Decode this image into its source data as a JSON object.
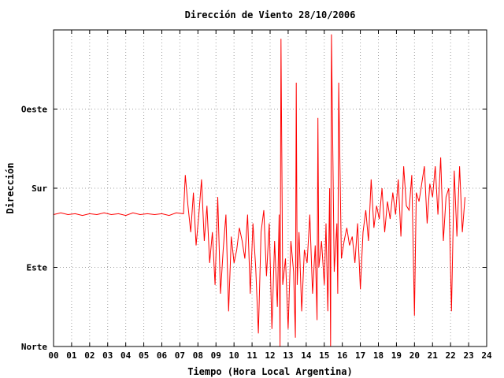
{
  "chart_data": {
    "type": "line",
    "title": "Dirección de Viento 28/10/2006",
    "xlabel": "Tiempo (Hora Local Argentina)",
    "ylabel": "Dirección",
    "xlim": [
      0,
      24
    ],
    "ylim": [
      0,
      360
    ],
    "x_ticks": [
      {
        "value": 0,
        "label": "00"
      },
      {
        "value": 1,
        "label": "01"
      },
      {
        "value": 2,
        "label": "02"
      },
      {
        "value": 3,
        "label": "03"
      },
      {
        "value": 4,
        "label": "04"
      },
      {
        "value": 5,
        "label": "05"
      },
      {
        "value": 6,
        "label": "06"
      },
      {
        "value": 7,
        "label": "07"
      },
      {
        "value": 8,
        "label": "08"
      },
      {
        "value": 9,
        "label": "09"
      },
      {
        "value": 10,
        "label": "10"
      },
      {
        "value": 11,
        "label": "11"
      },
      {
        "value": 12,
        "label": "12"
      },
      {
        "value": 13,
        "label": "13"
      },
      {
        "value": 14,
        "label": "14"
      },
      {
        "value": 15,
        "label": "15"
      },
      {
        "value": 16,
        "label": "16"
      },
      {
        "value": 17,
        "label": "17"
      },
      {
        "value": 18,
        "label": "18"
      },
      {
        "value": 19,
        "label": "19"
      },
      {
        "value": 20,
        "label": "20"
      },
      {
        "value": 21,
        "label": "21"
      },
      {
        "value": 22,
        "label": "22"
      },
      {
        "value": 23,
        "label": "23"
      },
      {
        "value": 24,
        "label": "24"
      }
    ],
    "y_ticks": [
      {
        "value": 0,
        "label": "Norte"
      },
      {
        "value": 90,
        "label": "Este"
      },
      {
        "value": 180,
        "label": "Sur"
      },
      {
        "value": 270,
        "label": "Oeste"
      }
    ],
    "grid": true,
    "series": [
      {
        "color": "#ff0000",
        "x": [
          0.0,
          0.4,
          0.8,
          1.2,
          1.6,
          2.0,
          2.4,
          2.8,
          3.2,
          3.6,
          4.0,
          4.4,
          4.8,
          5.2,
          5.6,
          6.0,
          6.4,
          6.8,
          7.2,
          7.3,
          7.45,
          7.6,
          7.75,
          7.9,
          8.05,
          8.2,
          8.35,
          8.5,
          8.65,
          8.8,
          8.95,
          9.1,
          9.25,
          9.4,
          9.55,
          9.7,
          9.85,
          10.0,
          10.15,
          10.3,
          10.45,
          10.6,
          10.75,
          10.9,
          11.05,
          11.2,
          11.35,
          11.5,
          11.65,
          11.8,
          11.95,
          12.1,
          12.25,
          12.4,
          12.5,
          12.55,
          12.6,
          12.7,
          12.85,
          13.0,
          13.15,
          13.3,
          13.4,
          13.45,
          13.5,
          13.6,
          13.75,
          13.9,
          14.05,
          14.2,
          14.35,
          14.5,
          14.6,
          14.65,
          14.7,
          14.85,
          15.0,
          15.1,
          15.2,
          15.3,
          15.35,
          15.4,
          15.55,
          15.7,
          15.75,
          15.8,
          15.95,
          16.1,
          16.25,
          16.4,
          16.55,
          16.7,
          16.85,
          17.0,
          17.15,
          17.3,
          17.45,
          17.6,
          17.75,
          17.9,
          18.05,
          18.2,
          18.35,
          18.5,
          18.65,
          18.8,
          18.95,
          19.1,
          19.25,
          19.4,
          19.55,
          19.7,
          19.85,
          20.0,
          20.1,
          20.25,
          20.4,
          20.55,
          20.7,
          20.85,
          21.0,
          21.15,
          21.3,
          21.45,
          21.6,
          21.75,
          21.9,
          22.05,
          22.2,
          22.35,
          22.5,
          22.65,
          22.8
        ],
        "y": [
          150,
          152,
          150,
          151,
          149,
          151,
          150,
          152,
          150,
          151,
          149,
          152,
          150,
          151,
          150,
          151,
          149,
          152,
          151,
          195,
          160,
          130,
          175,
          115,
          150,
          190,
          120,
          160,
          95,
          130,
          70,
          170,
          60,
          110,
          150,
          40,
          125,
          95,
          110,
          135,
          120,
          100,
          150,
          60,
          140,
          90,
          15,
          130,
          155,
          80,
          140,
          20,
          120,
          45,
          150,
          0,
          350,
          70,
          100,
          20,
          120,
          85,
          10,
          300,
          70,
          130,
          40,
          110,
          95,
          150,
          60,
          115,
          30,
          260,
          90,
          120,
          70,
          140,
          40,
          180,
          0,
          355,
          85,
          140,
          60,
          300,
          100,
          120,
          135,
          115,
          125,
          95,
          140,
          65,
          130,
          155,
          120,
          190,
          135,
          160,
          145,
          180,
          130,
          165,
          145,
          175,
          150,
          190,
          125,
          205,
          160,
          155,
          195,
          35,
          175,
          165,
          185,
          205,
          140,
          185,
          170,
          205,
          150,
          215,
          120,
          170,
          180,
          40,
          200,
          125,
          205,
          130,
          170
        ]
      }
    ]
  }
}
